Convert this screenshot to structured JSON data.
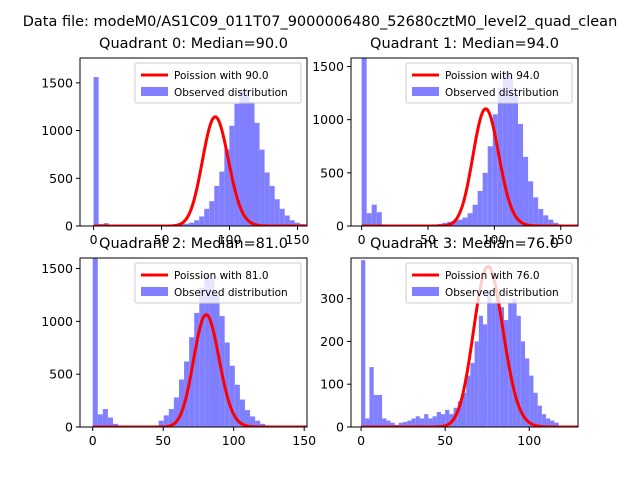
{
  "suptitle": "Data file: modeM0/AS1C09_011T07_9000006480_52680cztM0_level2_quad_clean",
  "colors": {
    "hist": "#7f7fff",
    "fit": "#ff0000",
    "axis": "#000000"
  },
  "chart_data": [
    {
      "type": "bar",
      "title": "Quadrant 0: Median=90.0",
      "legend": {
        "placement": "top-right",
        "fit_label": "Poission with 90.0",
        "hist_label": "Observed distribution"
      },
      "xlim": [
        -10,
        157
      ],
      "ylim": [
        0,
        1760
      ],
      "xticks": [
        0,
        50,
        100,
        150
      ],
      "yticks": [
        0,
        500,
        1000,
        1500
      ],
      "bin_start": 0,
      "bin_width": 3.7,
      "values": [
        1560,
        20,
        30,
        15,
        8,
        5,
        4,
        3,
        2,
        2,
        3,
        4,
        5,
        6,
        8,
        10,
        15,
        20,
        25,
        35,
        60,
        100,
        180,
        260,
        420,
        570,
        800,
        1050,
        1280,
        1430,
        1420,
        1300,
        1080,
        800,
        560,
        420,
        280,
        180,
        110,
        60,
        35,
        20,
        10
      ],
      "poisson_mean": 90.0,
      "fit_scale": 27200
    },
    {
      "type": "bar",
      "title": "Quadrant 1: Median=94.0",
      "legend": {
        "placement": "top-right",
        "fit_label": "Poission with 94.0",
        "hist_label": "Observed distribution"
      },
      "xlim": [
        -8,
        163
      ],
      "ylim": [
        0,
        1580
      ],
      "xticks": [
        0,
        50,
        100,
        150
      ],
      "yticks": [
        0,
        500,
        1000,
        1500
      ],
      "bin_start": 0,
      "bin_width": 3.8,
      "values": [
        1580,
        120,
        200,
        130,
        15,
        10,
        8,
        5,
        5,
        5,
        6,
        8,
        10,
        12,
        15,
        20,
        30,
        40,
        50,
        60,
        80,
        120,
        200,
        330,
        500,
        750,
        1050,
        1300,
        1460,
        1420,
        1250,
        960,
        650,
        420,
        270,
        160,
        100,
        60,
        30,
        15,
        8
      ],
      "poisson_mean": 94.0,
      "fit_scale": 26800
    },
    {
      "type": "bar",
      "title": "Quadrant 2: Median=81.0",
      "legend": {
        "placement": "top-right",
        "fit_label": "Poission with 81.0",
        "hist_label": "Observed distribution"
      },
      "xlim": [
        -9,
        152
      ],
      "ylim": [
        0,
        1600
      ],
      "xticks": [
        0,
        50,
        100,
        150
      ],
      "yticks": [
        0,
        500,
        1000,
        1500
      ],
      "bin_start": 0,
      "bin_width": 3.6,
      "values": [
        1600,
        120,
        170,
        90,
        30,
        10,
        6,
        5,
        5,
        6,
        8,
        10,
        15,
        60,
        110,
        170,
        280,
        450,
        620,
        850,
        1080,
        1320,
        1440,
        1400,
        1250,
        1050,
        800,
        580,
        400,
        260,
        160,
        100,
        60,
        30,
        15,
        8,
        5
      ],
      "poisson_mean": 81.0,
      "fit_scale": 24000
    },
    {
      "type": "bar",
      "title": "Quadrant 3: Median=76.0",
      "legend": {
        "placement": "top-right",
        "fit_label": "Poission with 76.0",
        "hist_label": "Observed distribution"
      },
      "xlim": [
        -6,
        129
      ],
      "ylim": [
        0,
        395
      ],
      "xticks": [
        0,
        50,
        100
      ],
      "yticks": [
        0,
        100,
        200,
        300
      ],
      "bin_start": 0,
      "bin_width": 2.5,
      "values": [
        390,
        20,
        140,
        75,
        75,
        20,
        15,
        10,
        5,
        10,
        12,
        15,
        20,
        25,
        20,
        30,
        20,
        25,
        35,
        30,
        40,
        30,
        45,
        60,
        80,
        120,
        150,
        200,
        260,
        240,
        320,
        290,
        310,
        280,
        250,
        290,
        300,
        260,
        200,
        160,
        120,
        80,
        50,
        30,
        20,
        15,
        10
      ],
      "poisson_mean": 76.0,
      "fit_scale": 8200
    }
  ]
}
